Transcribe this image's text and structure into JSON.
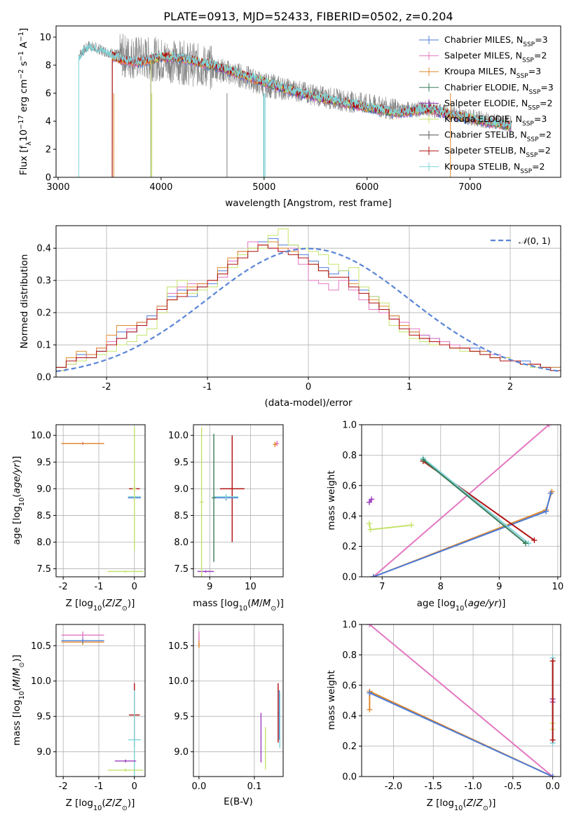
{
  "palette": {
    "Chabrier MILES": "#4c7bd9",
    "Salpeter MILES": "#e377c2",
    "Kroupa MILES": "#e08a2c",
    "Chabrier ELODIE": "#3a7d5a",
    "Salpeter ELODIE": "#9b3fbf",
    "Kroupa ELODIE": "#c4e36b",
    "Chabrier STELIB": "#555555",
    "Salpeter STELIB": "#b01010",
    "Kroupa STELIB": "#7fd3d8"
  },
  "chart_data": [
    {
      "id": "spectrum",
      "type": "line",
      "title": "PLATE=0913, MJD=52433, FIBERID=0502, z=0.204",
      "xlabel": "wavelength [Angstrom, rest frame]",
      "ylabel": "Flux [fλ10⁻¹⁷ erg cm⁻² s⁻¹ A⁻¹]",
      "xlim": [
        2980,
        7880
      ],
      "ylim": [
        0,
        10.8
      ],
      "xticks": [
        3000,
        4000,
        5000,
        6000,
        7000
      ],
      "yticks": [
        0,
        2,
        4,
        6,
        8,
        10
      ],
      "legend": [
        "Chabrier MILES, N_SSP=3",
        "Salpeter MILES, N_SSP=2",
        "Kroupa MILES, N_SSP=3",
        "Chabrier ELODIE, N_SSP=3",
        "Salpeter ELODIE, N_SSP=2",
        "Kroupa ELODIE, N_SSP=3",
        "Chabrier STELIB, N_SSP=2",
        "Salpeter STELIB, N_SSP=2",
        "Kroupa STELIB, N_SSP=2"
      ],
      "observed_continuum": {
        "x": [
          3200,
          3300,
          3450,
          3600,
          3800,
          4000,
          4200,
          4500,
          4800,
          5000,
          5300,
          5600,
          6000,
          6300,
          6600,
          6800,
          7000,
          7200,
          7400
        ],
        "y": [
          8.7,
          9.4,
          9.0,
          8.7,
          8.5,
          8.4,
          8.2,
          7.8,
          7.2,
          6.6,
          6.2,
          5.7,
          5.2,
          4.8,
          4.9,
          4.6,
          4.3,
          4.0,
          3.8
        ]
      },
      "model_continuum": {
        "x": [
          3200,
          3300,
          3450,
          3600,
          3800,
          4000,
          4200,
          4500,
          4800,
          5000,
          5300,
          5600,
          6000,
          6300,
          6600,
          6800,
          7000,
          7200,
          7400
        ],
        "y": [
          8.5,
          9.3,
          8.9,
          8.4,
          8.2,
          8.6,
          8.5,
          8.0,
          7.3,
          6.8,
          6.1,
          5.6,
          5.0,
          4.6,
          4.9,
          4.5,
          4.2,
          3.9,
          3.7
        ]
      }
    },
    {
      "id": "residual-histogram",
      "type": "line",
      "xlabel": "(data-model)/error",
      "ylabel": "Normed distribution",
      "xlim": [
        -2.5,
        2.5
      ],
      "ylim": [
        0,
        0.47
      ],
      "xticks": [
        -2,
        -1,
        0,
        1,
        2
      ],
      "yticks": [
        0.0,
        0.1,
        0.2,
        0.3,
        0.4
      ],
      "legend": [
        "𝒩(0, 1)"
      ],
      "bins": [
        -2.5,
        -2.4,
        -2.3,
        -2.2,
        -2.1,
        -2.0,
        -1.9,
        -1.8,
        -1.7,
        -1.6,
        -1.5,
        -1.4,
        -1.3,
        -1.2,
        -1.1,
        -1.0,
        -0.9,
        -0.8,
        -0.7,
        -0.6,
        -0.5,
        -0.4,
        -0.3,
        -0.2,
        -0.1,
        0.0,
        0.1,
        0.2,
        0.3,
        0.4,
        0.5,
        0.6,
        0.7,
        0.8,
        0.9,
        1.0,
        1.1,
        1.2,
        1.3,
        1.4,
        1.5,
        1.6,
        1.7,
        1.8,
        1.9,
        2.0,
        2.1,
        2.2,
        2.3,
        2.4
      ],
      "hist_series": [
        {
          "name": "Chabrier MILES",
          "values": [
            0.03,
            0.05,
            0.07,
            0.06,
            0.08,
            0.1,
            0.14,
            0.14,
            0.17,
            0.19,
            0.22,
            0.25,
            0.27,
            0.25,
            0.28,
            0.29,
            0.33,
            0.36,
            0.37,
            0.4,
            0.42,
            0.43,
            0.41,
            0.41,
            0.38,
            0.36,
            0.34,
            0.32,
            0.33,
            0.3,
            0.27,
            0.25,
            0.21,
            0.19,
            0.16,
            0.14,
            0.13,
            0.12,
            0.11,
            0.1,
            0.09,
            0.09,
            0.08,
            0.07,
            0.06,
            0.05,
            0.05,
            0.04,
            0.03,
            0.03
          ]
        },
        {
          "name": "Salpeter MILES",
          "values": [
            0.02,
            0.04,
            0.06,
            0.07,
            0.09,
            0.11,
            0.12,
            0.15,
            0.17,
            0.18,
            0.2,
            0.26,
            0.28,
            0.29,
            0.29,
            0.3,
            0.31,
            0.36,
            0.39,
            0.42,
            0.41,
            0.4,
            0.39,
            0.4,
            0.35,
            0.3,
            0.29,
            0.27,
            0.3,
            0.27,
            0.24,
            0.21,
            0.2,
            0.18,
            0.17,
            0.15,
            0.13,
            0.12,
            0.11,
            0.1,
            0.09,
            0.08,
            0.08,
            0.07,
            0.06,
            0.05,
            0.04,
            0.04,
            0.03,
            0.02
          ]
        },
        {
          "name": "Kroupa MILES",
          "values": [
            0.03,
            0.06,
            0.08,
            0.07,
            0.09,
            0.13,
            0.16,
            0.16,
            0.17,
            0.18,
            0.22,
            0.24,
            0.26,
            0.28,
            0.29,
            0.3,
            0.34,
            0.37,
            0.39,
            0.4,
            0.41,
            0.42,
            0.4,
            0.39,
            0.37,
            0.35,
            0.33,
            0.31,
            0.31,
            0.29,
            0.26,
            0.24,
            0.22,
            0.19,
            0.16,
            0.14,
            0.12,
            0.11,
            0.1,
            0.09,
            0.09,
            0.08,
            0.08,
            0.06,
            0.06,
            0.05,
            0.04,
            0.04,
            0.03,
            0.03
          ]
        },
        {
          "name": "Kroupa ELODIE",
          "values": [
            0.02,
            0.04,
            0.05,
            0.06,
            0.07,
            0.08,
            0.1,
            0.11,
            0.13,
            0.15,
            0.2,
            0.28,
            0.3,
            0.26,
            0.27,
            0.28,
            0.32,
            0.34,
            0.38,
            0.4,
            0.4,
            0.44,
            0.46,
            0.41,
            0.4,
            0.39,
            0.38,
            0.35,
            0.33,
            0.34,
            0.28,
            0.25,
            0.23,
            0.16,
            0.14,
            0.12,
            0.11,
            0.1,
            0.1,
            0.09,
            0.08,
            0.08,
            0.07,
            0.06,
            0.06,
            0.05,
            0.04,
            0.03,
            0.03,
            0.02
          ]
        },
        {
          "name": "Salpeter STELIB",
          "values": [
            0.03,
            0.05,
            0.06,
            0.06,
            0.08,
            0.1,
            0.12,
            0.14,
            0.16,
            0.18,
            0.21,
            0.24,
            0.25,
            0.27,
            0.28,
            0.3,
            0.32,
            0.35,
            0.37,
            0.39,
            0.41,
            0.4,
            0.39,
            0.38,
            0.37,
            0.35,
            0.33,
            0.31,
            0.31,
            0.28,
            0.26,
            0.23,
            0.21,
            0.18,
            0.15,
            0.13,
            0.12,
            0.11,
            0.1,
            0.09,
            0.09,
            0.08,
            0.07,
            0.06,
            0.05,
            0.05,
            0.04,
            0.04,
            0.03,
            0.02
          ]
        }
      ],
      "normal_curve": {
        "name": "𝒩(0, 1)",
        "mean": 0,
        "sigma": 1,
        "range": [
          -2.5,
          2.5
        ]
      }
    },
    {
      "id": "age-vs-Z",
      "type": "scatter",
      "xlabel": "Z [log₁₀(Z/Z⊙)]",
      "ylabel": "age  [log₁₀(age/yr)]",
      "xlim": [
        -2.2,
        0.3
      ],
      "ylim": [
        7.35,
        10.2
      ],
      "xticks": [
        -2,
        -1,
        0
      ],
      "yticks": [
        7.5,
        8.0,
        8.5,
        9.0,
        9.5,
        10.0
      ],
      "points": [
        {
          "series": "Salpeter MILES",
          "x": -1.45,
          "y": 9.85,
          "xerr": 0.6,
          "yerr": 0.03
        },
        {
          "series": "Kroupa MILES",
          "x": -1.45,
          "y": 9.85,
          "xerr": 0.6,
          "yerr": 0.02
        },
        {
          "series": "Salpeter STELIB",
          "x": 0.0,
          "y": 9.0,
          "xerr": 0.15,
          "yerr": 0.05
        },
        {
          "series": "Chabrier MILES",
          "x": 0.0,
          "y": 8.83,
          "xerr": 0.18,
          "yerr": 0.05
        },
        {
          "series": "Kroupa STELIB",
          "x": 0.0,
          "y": 8.85,
          "xerr": 0.18,
          "yerr": 0.05
        },
        {
          "series": "Kroupa ELODIE",
          "x": 0.0,
          "y": 9.0,
          "xerr": 0.05,
          "yerr": 1.15
        },
        {
          "series": "Kroupa ELODIE",
          "x": -0.25,
          "y": 7.45,
          "xerr": 0.5,
          "yerr": 0.02
        }
      ]
    },
    {
      "id": "age-vs-mass",
      "type": "scatter",
      "xlabel": "mass [log₁₀(M/M⊙)]",
      "ylabel": "",
      "xlim": [
        8.6,
        10.8
      ],
      "ylim": [
        7.35,
        10.2
      ],
      "xticks": [
        9,
        10
      ],
      "yticks": [
        7.5,
        8.0,
        8.5,
        9.0,
        9.5,
        10.0
      ],
      "points": [
        {
          "series": "Salpeter STELIB",
          "x": 9.55,
          "y": 9.0,
          "xerr": 0.3,
          "yerr": 1.0
        },
        {
          "series": "Chabrier MILES",
          "x": 9.4,
          "y": 8.83,
          "xerr": 0.3,
          "yerr": 0.05
        },
        {
          "series": "Kroupa STELIB",
          "x": 9.4,
          "y": 8.85,
          "xerr": 0.3,
          "yerr": 0.05
        },
        {
          "series": "Chabrier ELODIE",
          "x": 9.1,
          "y": 8.83,
          "xerr": 0.05,
          "yerr": 1.2
        },
        {
          "series": "Salpeter ELODIE",
          "x": 8.9,
          "y": 7.45,
          "xerr": 0.2,
          "yerr": 0.02
        },
        {
          "series": "Kroupa ELODIE",
          "x": 8.8,
          "y": 8.75,
          "xerr": 0.05,
          "yerr": 1.4
        },
        {
          "series": "Salpeter MILES",
          "x": 10.65,
          "y": 9.85,
          "xerr": 0.05,
          "yerr": 0.05
        },
        {
          "series": "Kroupa MILES",
          "x": 10.6,
          "y": 9.83,
          "xerr": 0.05,
          "yerr": 0.05
        }
      ]
    },
    {
      "id": "weight-vs-age",
      "type": "line",
      "xlabel": "age  [log₁₀(age/yr)]",
      "ylabel": "mass weight",
      "xlim": [
        6.65,
        10.05
      ],
      "ylim": [
        0,
        1.0
      ],
      "xticks": [
        7,
        8,
        9,
        10
      ],
      "yticks": [
        0.0,
        0.2,
        0.4,
        0.6,
        0.8,
        1.0
      ],
      "series": [
        {
          "name": "Salpeter MILES",
          "x": [
            6.85,
            9.85
          ],
          "y": [
            0.0,
            1.0
          ]
        },
        {
          "name": "Kroupa MILES",
          "x": [
            6.85,
            9.8,
            9.9
          ],
          "y": [
            0.0,
            0.44,
            0.56
          ]
        },
        {
          "name": "Chabrier MILES",
          "x": [
            6.85,
            9.8,
            9.88
          ],
          "y": [
            0.0,
            0.43,
            0.55
          ]
        },
        {
          "name": "Salpeter STELIB",
          "x": [
            7.7,
            9.6
          ],
          "y": [
            0.76,
            0.24
          ]
        },
        {
          "name": "Kroupa STELIB",
          "x": [
            7.7,
            9.5
          ],
          "y": [
            0.78,
            0.22
          ]
        },
        {
          "name": "Chabrier ELODIE",
          "x": [
            7.7,
            9.45
          ],
          "y": [
            0.77,
            0.22
          ]
        },
        {
          "name": "Kroupa ELODIE",
          "x": [
            6.78,
            6.8,
            7.5
          ],
          "y": [
            0.35,
            0.31,
            0.34
          ]
        },
        {
          "name": "Salpeter ELODIE",
          "x": [
            6.78,
            6.82
          ],
          "y": [
            0.49,
            0.51
          ]
        }
      ]
    },
    {
      "id": "mass-vs-Z",
      "type": "scatter",
      "xlabel": "Z [log₁₀(Z/Z⊙)]",
      "ylabel": "mass [log₁₀(M/M⊙)]",
      "xlim": [
        -2.2,
        0.3
      ],
      "ylim": [
        8.65,
        10.8
      ],
      "xticks": [
        -2,
        -1,
        0
      ],
      "yticks": [
        9.0,
        9.5,
        10.0,
        10.5
      ],
      "points": [
        {
          "series": "Salpeter MILES",
          "x": -1.45,
          "y": 10.65,
          "xerr": 0.6,
          "yerr": 0.05
        },
        {
          "series": "Kroupa MILES",
          "x": -1.45,
          "y": 10.55,
          "xerr": 0.6,
          "yerr": 0.04
        },
        {
          "series": "Chabrier MILES",
          "x": -1.45,
          "y": 10.57,
          "xerr": 0.6,
          "yerr": 0.03
        },
        {
          "series": "Salpeter STELIB",
          "x": 0.0,
          "y": 9.52,
          "xerr": 0.15,
          "yerr": 0.45
        },
        {
          "series": "Kroupa STELIB",
          "x": 0.0,
          "y": 9.17,
          "xerr": 0.18,
          "yerr": 0.7
        },
        {
          "series": "Salpeter ELODIE",
          "x": -0.25,
          "y": 8.87,
          "xerr": 0.3,
          "yerr": 0.02
        },
        {
          "series": "Kroupa ELODIE",
          "x": -0.25,
          "y": 8.74,
          "xerr": 0.5,
          "yerr": 0.02
        }
      ]
    },
    {
      "id": "mass-vs-EBV",
      "type": "scatter",
      "xlabel": "E(B-V)",
      "ylabel": "",
      "xlim": [
        -0.01,
        0.152
      ],
      "ylim": [
        8.65,
        10.8
      ],
      "xticks": [
        0.0,
        0.1
      ],
      "tick_labels": [
        "0.0",
        "0.1"
      ],
      "yticks": [
        9.0,
        9.5,
        10.0,
        10.5
      ],
      "points": [
        {
          "series": "Salpeter MILES",
          "x": 0.0,
          "y": 10.6,
          "xerr": 0.001,
          "yerr": 0.1
        },
        {
          "series": "Kroupa MILES",
          "x": 0.0,
          "y": 10.52,
          "xerr": 0.001,
          "yerr": 0.05
        },
        {
          "series": "Salpeter ELODIE",
          "x": 0.112,
          "y": 9.2,
          "xerr": 0.001,
          "yerr": 0.35
        },
        {
          "series": "Kroupa ELODIE",
          "x": 0.12,
          "y": 9.05,
          "xerr": 0.001,
          "yerr": 0.3
        },
        {
          "series": "Salpeter STELIB",
          "x": 0.143,
          "y": 9.55,
          "xerr": 0.001,
          "yerr": 0.42
        },
        {
          "series": "Chabrier MILES",
          "x": 0.145,
          "y": 9.52,
          "xerr": 0.001,
          "yerr": 0.35
        },
        {
          "series": "Kroupa STELIB",
          "x": 0.146,
          "y": 9.45,
          "xerr": 0.001,
          "yerr": 0.4
        }
      ]
    },
    {
      "id": "weight-vs-Z",
      "type": "line",
      "xlabel": "Z [log₁₀(Z/Z⊙)]",
      "ylabel": "mass weight",
      "xlim": [
        -2.4,
        0.1
      ],
      "ylim": [
        0,
        1.0
      ],
      "xticks": [
        -2.0,
        -1.5,
        -1.0,
        -0.5,
        0.0
      ],
      "yticks": [
        0.0,
        0.2,
        0.4,
        0.6,
        0.8,
        1.0
      ],
      "series": [
        {
          "name": "Salpeter MILES",
          "x": [
            -2.3,
            0.0
          ],
          "y": [
            1.0,
            0.0
          ]
        },
        {
          "name": "Kroupa MILES",
          "x": [
            -2.3,
            -2.3,
            0.0
          ],
          "y": [
            0.44,
            0.56,
            0.0
          ]
        },
        {
          "name": "Chabrier MILES",
          "x": [
            -2.3,
            0.0
          ],
          "y": [
            0.55,
            0.0
          ]
        },
        {
          "name": "Kroupa STELIB",
          "x": [
            0.0,
            0.0
          ],
          "y": [
            0.22,
            0.78
          ]
        },
        {
          "name": "Kroupa ELODIE",
          "x": [
            0.0,
            0.0
          ],
          "y": [
            0.31,
            0.35
          ]
        },
        {
          "name": "Salpeter ELODIE",
          "x": [
            0.0,
            0.0
          ],
          "y": [
            0.49,
            0.51
          ]
        },
        {
          "name": "Salpeter STELIB",
          "x": [
            0.0,
            0.0
          ],
          "y": [
            0.24,
            0.76
          ]
        }
      ]
    }
  ]
}
